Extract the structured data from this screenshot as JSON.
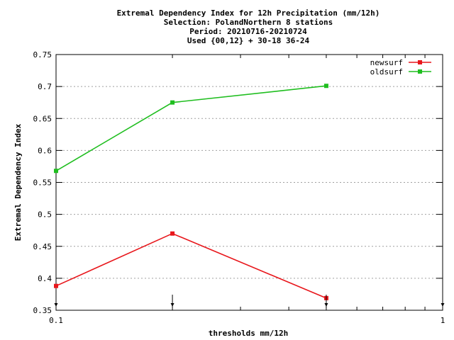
{
  "chart_data": {
    "type": "line",
    "title_lines": [
      "Extremal Dependency Index  for 12h Precipitation (mm/12h)",
      "Selection: PolandNorthern      8 stations",
      "Period: 20210716-20210724",
      "Used {00,12} + 30-18 36-24"
    ],
    "xlabel": "thresholds mm/12h",
    "ylabel": "Extremal Dependency Index",
    "x_scale": "log",
    "xlim": [
      0.1,
      1
    ],
    "ylim": [
      0.35,
      0.75
    ],
    "x_ticks": [
      0.1,
      1
    ],
    "x_tick_labels": [
      "0.1",
      "1"
    ],
    "y_ticks": [
      0.35,
      0.4,
      0.45,
      0.5,
      0.55,
      0.6,
      0.65,
      0.7,
      0.75
    ],
    "y_tick_labels": [
      "0.35",
      "0.4",
      "0.45",
      "0.5",
      "0.55",
      "0.6",
      "0.65",
      "0.7",
      "0.75"
    ],
    "grid": "horizontal dotted",
    "legend_position": "top-right",
    "threshold_markers": [
      0.1,
      0.2,
      0.5,
      1
    ],
    "series": [
      {
        "name": "newsurf",
        "color": "#e8161b",
        "x": [
          0.1,
          0.2,
          0.5
        ],
        "y": [
          0.388,
          0.47,
          0.369
        ]
      },
      {
        "name": "oldsurf",
        "color": "#1fbe1f",
        "x": [
          0.1,
          0.2,
          0.5
        ],
        "y": [
          0.568,
          0.675,
          0.701
        ]
      }
    ]
  }
}
